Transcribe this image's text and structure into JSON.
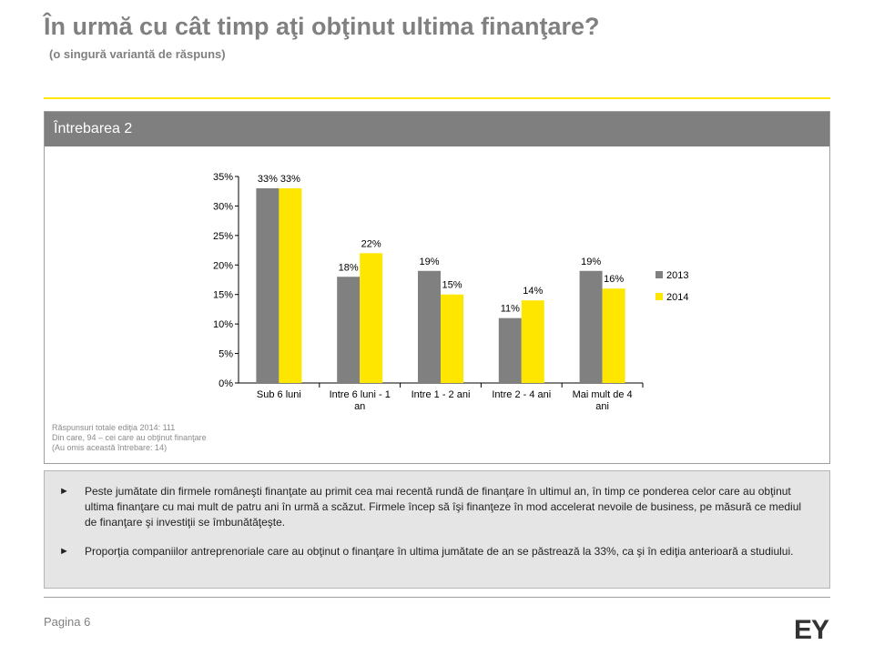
{
  "header": {
    "title": "În urmă cu cât timp aţi obţinut ultima finanţare?",
    "subtitle": "(o singură variantă de răspuns)"
  },
  "panel": {
    "title": "Întrebarea 2",
    "notes": [
      "Răspunsuri totale ediţia 2014: 111",
      "Din care, 94 – cei care au obţinut finanţare",
      "(Au omis această întrebare: 14)"
    ]
  },
  "chart_data": {
    "type": "bar",
    "categories": [
      [
        "Sub 6 luni"
      ],
      [
        "Intre 6 luni - 1",
        "an"
      ],
      [
        "Intre 1 - 2 ani"
      ],
      [
        "Intre 2 - 4 ani"
      ],
      [
        "Mai mult de 4",
        "ani"
      ]
    ],
    "series": [
      {
        "name": "2013",
        "values": [
          33,
          18,
          19,
          11,
          19
        ],
        "labels": [
          "33%",
          "18%",
          "19%",
          "11%",
          "19%"
        ],
        "color": "#808080"
      },
      {
        "name": "2014",
        "values": [
          33,
          22,
          15,
          14,
          16
        ],
        "labels": [
          "33%",
          "22%",
          "15%",
          "14%",
          "16%"
        ],
        "color": "#ffe600"
      }
    ],
    "yticks": [
      "0%",
      "5%",
      "10%",
      "15%",
      "20%",
      "25%",
      "30%",
      "35%"
    ],
    "ylim": [
      0,
      35
    ],
    "legend": "right",
    "grid": false
  },
  "summary": {
    "bullets": [
      "Peste jumătate din firmele româneşti finanţate au primit cea mai recentă rundă de finanţare în ultimul an, în timp ce ponderea celor care au obţinut ultima finanţare cu mai mult de patru ani în urmă a scăzut. Firmele încep să îşi finanţeze în mod accelerat nevoile de business, pe măsură ce mediul de finanţare şi investiţii se îmbunătăţeşte.",
      "Proporţia companiilor antreprenoriale care au obţinut o finanţare în ultima jumătate de an se păstrează la 33%, ca şi în ediţia anterioară a studiului."
    ],
    "bullet_marker": "►"
  },
  "footer": {
    "page": "Pagina 6",
    "logo": "EY"
  }
}
